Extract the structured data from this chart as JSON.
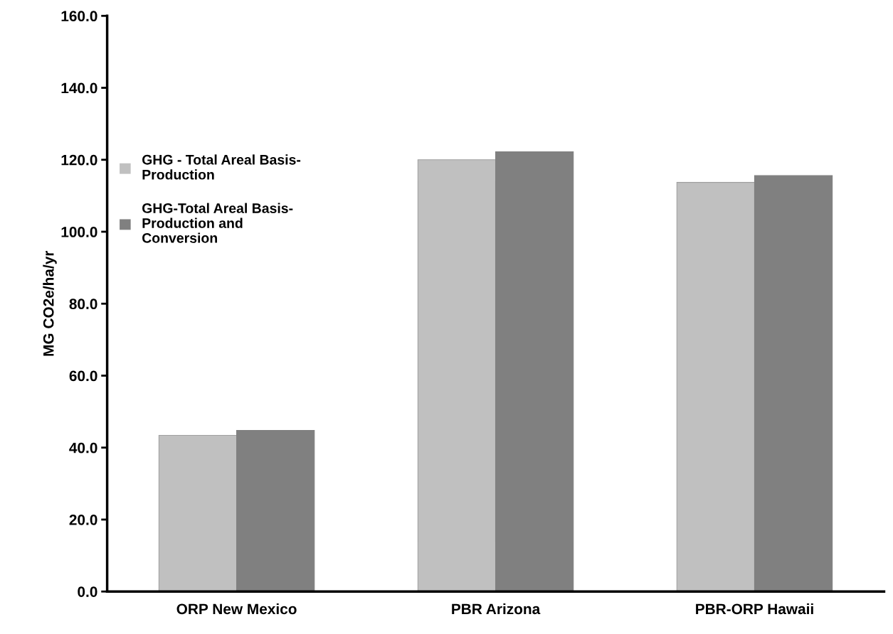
{
  "chart_data": {
    "type": "bar",
    "ylabel": "MG CO2e/ha/yr",
    "categories": [
      "ORP New Mexico",
      "PBR Arizona",
      "PBR-ORP Hawaii"
    ],
    "series": [
      {
        "name": "GHG - Total Areal Basis-Production",
        "color": "#c0c0c0",
        "values": [
          43.4,
          120.0,
          113.7
        ]
      },
      {
        "name": "GHG-Total Areal Basis-Production and Conversion",
        "color": "#808080",
        "values": [
          44.8,
          122.2,
          115.6
        ]
      }
    ],
    "ylim": [
      0,
      160
    ],
    "yticks": [
      {
        "value": 0,
        "label": "0.0"
      },
      {
        "value": 20,
        "label": "20.0"
      },
      {
        "value": 40,
        "label": "40.0"
      },
      {
        "value": 60,
        "label": "60.0"
      },
      {
        "value": 80,
        "label": "80.0"
      },
      {
        "value": 100,
        "label": "100.0"
      },
      {
        "value": 120,
        "label": "120.0"
      },
      {
        "value": 140,
        "label": "140.0"
      },
      {
        "value": 160,
        "label": "160.0"
      }
    ],
    "grid": false,
    "legend": "left"
  }
}
